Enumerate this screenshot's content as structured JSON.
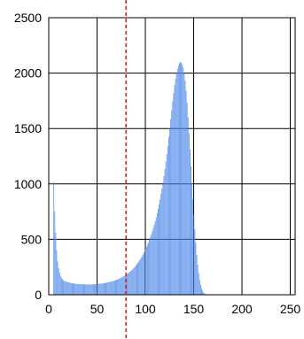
{
  "chart_data": {
    "type": "bar",
    "title": "",
    "xlabel": "",
    "ylabel": "",
    "xlim": [
      0,
      255
    ],
    "ylim": [
      0,
      2500
    ],
    "x_ticks": [
      0,
      50,
      100,
      150,
      200,
      250
    ],
    "y_ticks": [
      0,
      500,
      1000,
      1500,
      2000,
      2500
    ],
    "x_tick_labels": [
      "0",
      "50",
      "100",
      "150",
      "200",
      "250"
    ],
    "y_tick_labels": [
      "0",
      "500",
      "1000",
      "1500",
      "2000",
      "2500"
    ],
    "grid": true,
    "series": [
      {
        "values": [
          0,
          0,
          0,
          0,
          0,
          1020,
          750,
          560,
          400,
          300,
          240,
          200,
          170,
          150,
          140,
          130,
          125,
          120,
          118,
          115,
          112,
          110,
          108,
          106,
          104,
          102,
          100,
          100,
          99,
          98,
          97,
          96,
          96,
          95,
          95,
          94,
          94,
          94,
          93,
          93,
          93,
          93,
          93,
          94,
          94,
          94,
          95,
          95,
          96,
          96,
          97,
          98,
          99,
          100,
          101,
          102,
          103,
          105,
          106,
          108,
          110,
          112,
          114,
          116,
          118,
          120,
          123,
          126,
          129,
          132,
          135,
          138,
          142,
          146,
          150,
          155,
          160,
          165,
          170,
          175,
          180,
          187,
          194,
          201,
          208,
          216,
          225,
          234,
          244,
          254,
          265,
          276,
          288,
          300,
          314,
          328,
          343,
          358,
          375,
          392,
          410,
          430,
          450,
          472,
          495,
          520,
          546,
          573,
          602,
          633,
          665,
          700,
          737,
          776,
          818,
          862,
          910,
          960,
          1015,
          1072,
          1135,
          1200,
          1270,
          1345,
          1425,
          1505,
          1585,
          1665,
          1745,
          1820,
          1890,
          1950,
          2000,
          2040,
          2070,
          2090,
          2100,
          2095,
          2080,
          2050,
          2000,
          1930,
          1840,
          1730,
          1600,
          1460,
          1310,
          1160,
          1010,
          860,
          720,
          590,
          470,
          360,
          270,
          195,
          135,
          90,
          58,
          36,
          22,
          13,
          8,
          5,
          3,
          2,
          1,
          1,
          0,
          0,
          0,
          0,
          0,
          0,
          0,
          0,
          0,
          0,
          0,
          0,
          0,
          0,
          0,
          0,
          0,
          0,
          0,
          0,
          0,
          0,
          0,
          0,
          0,
          0,
          0,
          0,
          0,
          0,
          0,
          0,
          0,
          0,
          0,
          0,
          0,
          0,
          0,
          0,
          0,
          0,
          0,
          0,
          0,
          0,
          0,
          0,
          0,
          0,
          0,
          0,
          0,
          0,
          0,
          0,
          0,
          0,
          0,
          0,
          0,
          0,
          0,
          0,
          0,
          0,
          0,
          0,
          0,
          0,
          0,
          0,
          0,
          0,
          0,
          0,
          0,
          0,
          0,
          0,
          0,
          0,
          0,
          0,
          0,
          0,
          0,
          0
        ]
      }
    ],
    "annotations": [
      {
        "type": "vertical-line",
        "x": 80,
        "style": "dashed",
        "color": "#e8201e"
      }
    ],
    "colors": {
      "bar": "#4a86e8",
      "grid": "#000000",
      "threshold": "#e8201e"
    }
  }
}
